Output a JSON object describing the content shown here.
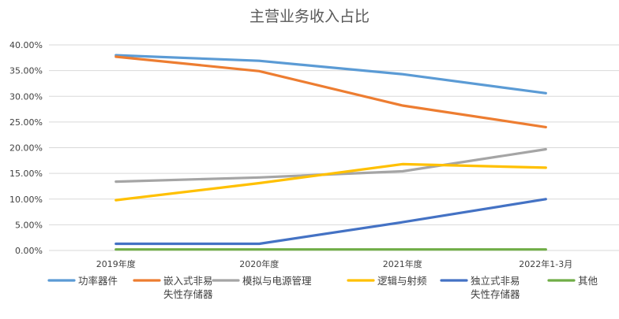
{
  "chart_data": {
    "type": "line",
    "title": "主营业务收入占比",
    "categories": [
      "2019年度",
      "2020年度",
      "2021年度",
      "2022年1-3月"
    ],
    "ylim": [
      0,
      40
    ],
    "yticks": [
      "0.00%",
      "5.00%",
      "10.00%",
      "15.00%",
      "20.00%",
      "25.00%",
      "30.00%",
      "35.00%",
      "40.00%"
    ],
    "grid": true,
    "legend_position": "bottom",
    "series": [
      {
        "name": "功率器件",
        "name_lines": [
          "功率器件"
        ],
        "color": "#5B9BD5",
        "values": [
          38.0,
          36.9,
          34.3,
          30.6
        ]
      },
      {
        "name": "嵌入式非易失性存储器",
        "name_lines": [
          "嵌入式非易",
          "失性存储器"
        ],
        "color": "#ED7D31",
        "values": [
          37.7,
          34.9,
          28.2,
          24.0
        ]
      },
      {
        "name": "模拟与电源管理",
        "name_lines": [
          "模拟与电源管理"
        ],
        "color": "#A5A5A5",
        "values": [
          13.4,
          14.2,
          15.4,
          19.7
        ]
      },
      {
        "name": "逻辑与射频",
        "name_lines": [
          "逻辑与射频"
        ],
        "color": "#FFC000",
        "values": [
          9.8,
          13.1,
          16.8,
          16.1
        ]
      },
      {
        "name": "独立式非易失性存储器",
        "name_lines": [
          "独立式非易",
          "失性存储器"
        ],
        "color": "#4472C4",
        "values": [
          1.3,
          1.3,
          5.5,
          10.0
        ]
      },
      {
        "name": "其他",
        "name_lines": [
          "其他"
        ],
        "color": "#70AD47",
        "values": [
          0.2,
          0.2,
          0.2,
          0.2
        ]
      }
    ]
  }
}
